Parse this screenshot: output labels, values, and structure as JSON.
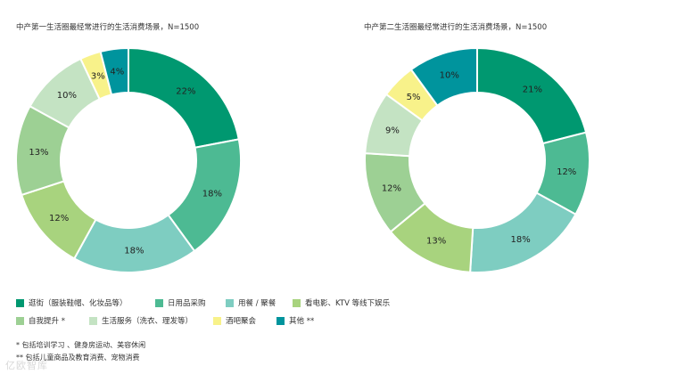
{
  "chart_data": [
    {
      "type": "pie",
      "title": "中产第一生活圈最经常进行的生活消费场景，N=1500",
      "categories": [
        "逛街（服装鞋帽、化妆品等）",
        "日用品采购",
        "用餐/聚餐",
        "看电影、KTV等线下娱乐",
        "自我提升*",
        "生活服务（洗衣、理发等）",
        "酒吧聚会",
        "其他**"
      ],
      "values": [
        22,
        18,
        18,
        12,
        13,
        10,
        3,
        4
      ],
      "labels": [
        "22%",
        "18%",
        "18%",
        "12%",
        "13%",
        "10%",
        "3%",
        "4%"
      ]
    },
    {
      "type": "pie",
      "title": "中产第二生活圈最经常进行的生活消费场景，N=1500",
      "categories": [
        "逛街（服装鞋帽、化妆品等）",
        "日用品采购",
        "用餐/聚餐",
        "看电影、KTV等线下娱乐",
        "自我提升*",
        "生活服务（洗衣、理发等）",
        "酒吧聚会",
        "其他**"
      ],
      "values": [
        21,
        12,
        18,
        13,
        12,
        9,
        5,
        10
      ],
      "labels": [
        "21%",
        "12%",
        "18%",
        "13%",
        "12%",
        "9%",
        "5%",
        "10%"
      ]
    }
  ],
  "legend": [
    {
      "label": "逛街（服装鞋帽、化妆品等）",
      "color": "#009870"
    },
    {
      "label": "日用品采购",
      "color": "#4dba93"
    },
    {
      "label": "用餐 / 聚餐",
      "color": "#7ecdc1"
    },
    {
      "label": "看电影、KTV 等线下娱乐",
      "color": "#a8d37e"
    },
    {
      "label": "自我提升 *",
      "color": "#9dd094"
    },
    {
      "label": "生活服务（洗衣、理发等）",
      "color": "#c4e3c3"
    },
    {
      "label": "酒吧聚会",
      "color": "#f8f28a"
    },
    {
      "label": "其他 **",
      "color": "#00949d"
    }
  ],
  "footnotes": {
    "note1": "*  包括培训学习 、健身房运动、美容休闲",
    "note2": "**  包括儿童商品及教育消费、宠物消费"
  },
  "watermark": "亿欧智库"
}
